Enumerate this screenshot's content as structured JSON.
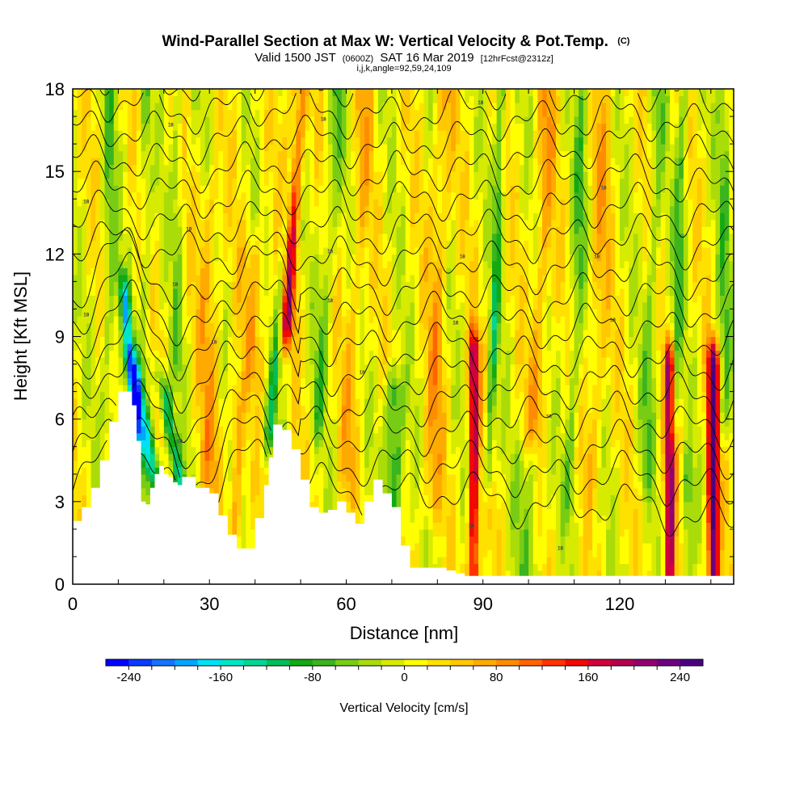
{
  "chart_data": {
    "type": "heatmap",
    "title": "Wind-Parallel Section at Max W: Vertical Velocity & Pot.Temp.",
    "title_mark": "(C)",
    "subtitle_main_a": "Valid 1500 JST",
    "subtitle_utc": "(0600Z)",
    "subtitle_main_b": "SAT 16 Mar 2019",
    "subtitle_fcst": "[12hrFcst@2312z]",
    "subtitle_params": "i,j,k,angle=92,59,24,109",
    "xlabel": "Distance [nm]",
    "ylabel": "Height [Kft MSL]",
    "xlim": [
      0,
      145
    ],
    "ylim": [
      0,
      18
    ],
    "x_ticks": [
      0,
      30,
      60,
      90,
      120
    ],
    "x_tick_labels": [
      "0",
      "30",
      "60",
      "90",
      "120"
    ],
    "y_ticks": [
      0,
      3,
      6,
      9,
      12,
      15,
      18
    ],
    "y_tick_labels": [
      "0",
      "3",
      "6",
      "9",
      "12",
      "15",
      "18"
    ],
    "colorbar": {
      "label": "Vertical Velocity [cm/s]",
      "min": -260,
      "max": 260,
      "step": 20,
      "tick_values": [
        -240,
        -160,
        -80,
        0,
        80,
        160,
        240
      ],
      "tick_labels": [
        "-240",
        "-160",
        "-80",
        "0",
        "80",
        "160",
        "240"
      ],
      "colors": [
        "#0000ff",
        "#0a3cff",
        "#1473ff",
        "#00a6ff",
        "#00e1f5",
        "#00e6c3",
        "#00d796",
        "#00be5a",
        "#14a914",
        "#3cb41e",
        "#78cd14",
        "#aadc0a",
        "#d7eb00",
        "#ffff00",
        "#ffe100",
        "#ffc800",
        "#ffaa00",
        "#ff8c00",
        "#ff6400",
        "#ff3200",
        "#f00a00",
        "#d2003c",
        "#b40050",
        "#91006e",
        "#6e0082",
        "#4b0082"
      ]
    },
    "terrain_profile": {
      "x": [
        0,
        2,
        4,
        6,
        8,
        10,
        12,
        13,
        14,
        15,
        16,
        17,
        18,
        19,
        20,
        21,
        22,
        23,
        24,
        25,
        27,
        30,
        32,
        34,
        36,
        38,
        40,
        42,
        43,
        44,
        46,
        48,
        50,
        52,
        54,
        56,
        58,
        60,
        62,
        64,
        66,
        68,
        70,
        72,
        74,
        76,
        78,
        80,
        82,
        84,
        86,
        88,
        90,
        95,
        100,
        105,
        110,
        115,
        120,
        125,
        130,
        135,
        140,
        145
      ],
      "y": [
        2.3,
        2.8,
        3.5,
        4.5,
        5.9,
        7.0,
        7.0,
        6.5,
        5.2,
        3.0,
        2.9,
        3.5,
        4.0,
        4.3,
        4.0,
        3.9,
        3.7,
        3.6,
        3.9,
        3.9,
        3.5,
        3.3,
        2.5,
        1.8,
        1.3,
        1.3,
        2.4,
        3.6,
        4.6,
        5.8,
        5.6,
        4.9,
        3.8,
        2.8,
        2.6,
        2.7,
        3.0,
        2.6,
        2.2,
        3.0,
        3.8,
        3.3,
        2.8,
        1.4,
        0.6,
        0.6,
        0.6,
        0.6,
        0.5,
        0.4,
        0.3,
        0.3,
        0.3,
        0.3,
        0.3,
        0.3,
        0.3,
        0.3,
        0.3,
        0.3,
        0.3,
        0.3,
        0.3,
        0.3
      ]
    },
    "velocity_features": [
      {
        "x": 12.5,
        "y": 8.5,
        "halfwidth": 1.2,
        "ztop": 10.5,
        "zbot": 5.5,
        "amp": -160,
        "tilt": -0.6
      },
      {
        "x": 16.5,
        "y": 5.2,
        "halfwidth": 1.6,
        "ztop": 7.5,
        "zbot": 3.0,
        "amp": -140,
        "tilt": -1.2
      },
      {
        "x": 22.0,
        "y": 5.0,
        "halfwidth": 1.5,
        "ztop": 7.0,
        "zbot": 3.5,
        "amp": -130,
        "tilt": -1.0
      },
      {
        "x": 48.0,
        "y": 13.0,
        "halfwidth": 1.6,
        "ztop": 18.0,
        "zbot": 9.5,
        "amp": 170,
        "tilt": 0.3
      },
      {
        "x": 46.0,
        "y": 11.0,
        "halfwidth": 1.2,
        "ztop": 18.0,
        "zbot": 5.5,
        "amp": -90,
        "tilt": 0.5
      },
      {
        "x": 70.5,
        "y": 4.0,
        "halfwidth": 2.0,
        "ztop": 7.0,
        "zbot": 2.0,
        "amp": -110,
        "tilt": 0.0
      },
      {
        "x": 88.0,
        "y": 5.0,
        "halfwidth": 1.1,
        "ztop": 8.5,
        "zbot": 0.3,
        "amp": 190,
        "tilt": 0.0
      },
      {
        "x": 131.0,
        "y": 4.5,
        "halfwidth": 1.1,
        "ztop": 8.0,
        "zbot": 0.3,
        "amp": 200,
        "tilt": 0.0
      },
      {
        "x": 140.5,
        "y": 4.5,
        "halfwidth": 1.2,
        "ztop": 8.0,
        "zbot": 0.3,
        "amp": 250,
        "tilt": 0.0
      },
      {
        "x": 93.0,
        "y": 12.0,
        "halfwidth": 1.0,
        "ztop": 18.0,
        "zbot": 4.0,
        "amp": -90,
        "tilt": 0.2
      },
      {
        "x": 56.0,
        "y": 12.0,
        "halfwidth": 1.5,
        "ztop": 18.0,
        "zbot": 6.0,
        "amp": -60,
        "tilt": 0.4
      },
      {
        "x": 30.0,
        "y": 10.0,
        "halfwidth": 2.5,
        "ztop": 14.0,
        "zbot": 4.0,
        "amp": 50,
        "tilt": 0.0
      },
      {
        "x": 36.0,
        "y": 4.0,
        "halfwidth": 1.5,
        "ztop": 6.5,
        "zbot": 2.0,
        "amp": 70,
        "tilt": 0.0
      },
      {
        "x": 40.0,
        "y": 10.0,
        "halfwidth": 3.0,
        "ztop": 12.0,
        "zbot": 8.0,
        "amp": 45,
        "tilt": 0.0
      },
      {
        "x": 80.0,
        "y": 10.0,
        "halfwidth": 2.0,
        "ztop": 18.0,
        "zbot": 3.0,
        "amp": 55,
        "tilt": 0.2
      },
      {
        "x": 103.0,
        "y": 12.0,
        "halfwidth": 2.0,
        "ztop": 18.0,
        "zbot": 6.0,
        "amp": 55,
        "tilt": 0.2
      },
      {
        "x": 115.0,
        "y": 9.0,
        "halfwidth": 2.0,
        "ztop": 18.0,
        "zbot": 4.0,
        "amp": 45,
        "tilt": 0.2
      },
      {
        "x": 110.0,
        "y": 8.0,
        "halfwidth": 1.5,
        "ztop": 18.0,
        "zbot": 3.0,
        "amp": -60,
        "tilt": 0.2
      },
      {
        "x": 127.0,
        "y": 10.0,
        "halfwidth": 1.5,
        "ztop": 18.0,
        "zbot": 4.0,
        "amp": -55,
        "tilt": 0.2
      },
      {
        "x": 133.0,
        "y": 12.0,
        "halfwidth": 1.2,
        "ztop": 18.0,
        "zbot": 6.0,
        "amp": -70,
        "tilt": 0.2
      },
      {
        "x": 135.0,
        "y": 2.0,
        "halfwidth": 1.2,
        "ztop": 4.0,
        "zbot": 0.3,
        "amp": -70,
        "tilt": 0.0
      },
      {
        "x": 100.0,
        "y": 2.0,
        "halfwidth": 3.0,
        "ztop": 4.0,
        "zbot": 0.3,
        "amp": -45,
        "tilt": 0.0
      },
      {
        "x": 8.0,
        "y": 12.0,
        "halfwidth": 1.5,
        "ztop": 18.0,
        "zbot": 6.0,
        "amp": -55,
        "tilt": 0.0
      },
      {
        "x": 16.0,
        "y": 14.0,
        "halfwidth": 1.2,
        "ztop": 18.0,
        "zbot": 8.0,
        "amp": -50,
        "tilt": 0.0
      },
      {
        "x": 23.0,
        "y": 14.0,
        "halfwidth": 1.2,
        "ztop": 18.0,
        "zbot": 8.0,
        "amp": -45,
        "tilt": 0.0
      },
      {
        "x": 62.0,
        "y": 10.0,
        "halfwidth": 2.0,
        "ztop": 18.0,
        "zbot": 4.0,
        "amp": 40,
        "tilt": 0.3
      },
      {
        "x": 143.0,
        "y": 12.0,
        "halfwidth": 1.5,
        "ztop": 18.0,
        "zbot": 6.0,
        "amp": -55,
        "tilt": 0.0
      }
    ],
    "isentrope_labels": [
      {
        "text": "18",
        "x": 3.0,
        "y": 9.8
      },
      {
        "text": "18",
        "x": 3.0,
        "y": 13.9
      },
      {
        "text": "18",
        "x": 21.5,
        "y": 16.7
      },
      {
        "text": "18",
        "x": 25.5,
        "y": 12.9
      },
      {
        "text": "18",
        "x": 22.5,
        "y": 10.9
      },
      {
        "text": "18",
        "x": 31.0,
        "y": 8.8
      },
      {
        "text": "18",
        "x": 56.5,
        "y": 12.1
      },
      {
        "text": "18",
        "x": 56.5,
        "y": 10.3
      },
      {
        "text": "18",
        "x": 63.5,
        "y": 7.7
      },
      {
        "text": "18",
        "x": 55.0,
        "y": 16.9
      },
      {
        "text": "18",
        "x": 85.5,
        "y": 11.9
      },
      {
        "text": "18",
        "x": 84.0,
        "y": 9.5
      },
      {
        "text": "18",
        "x": 89.5,
        "y": 17.5
      },
      {
        "text": "18",
        "x": 104.5,
        "y": 6.1
      },
      {
        "text": "18",
        "x": 115.0,
        "y": 11.9
      },
      {
        "text": "18",
        "x": 116.5,
        "y": 14.4
      },
      {
        "text": "18",
        "x": 118.5,
        "y": 9.6
      },
      {
        "text": "18",
        "x": 23.5,
        "y": 5.2
      },
      {
        "text": "18",
        "x": 87.5,
        "y": 2.1
      },
      {
        "text": "18",
        "x": 107.0,
        "y": 1.3
      }
    ]
  }
}
